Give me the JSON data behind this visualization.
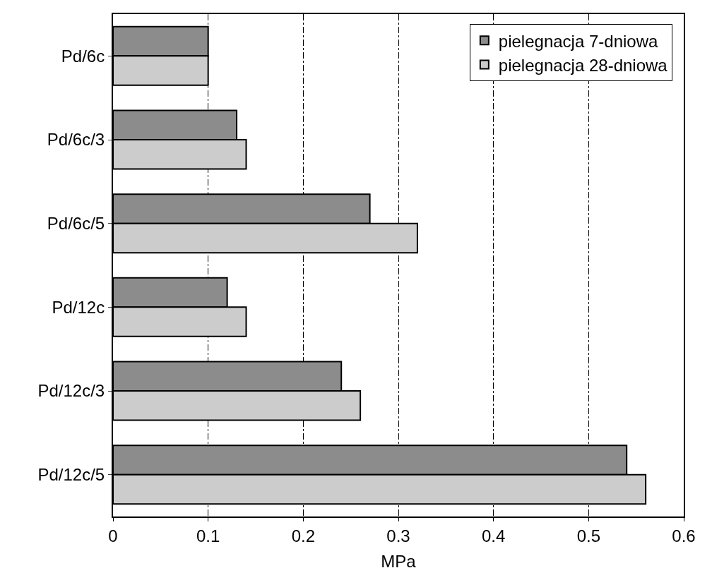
{
  "chart_data": {
    "type": "bar",
    "orientation": "horizontal",
    "xlabel": "MPa",
    "categories": [
      "Pd/6c",
      "Pd/6c/3",
      "Pd/6c/5",
      "Pd/12c",
      "Pd/12c/3",
      "Pd/12c/5"
    ],
    "series": [
      {
        "name": "pielegnacja 7-dniowa",
        "color": "#8c8c8c",
        "values": [
          0.1,
          0.13,
          0.27,
          0.12,
          0.24,
          0.54
        ]
      },
      {
        "name": "pielegnacja 28-dniowa",
        "color": "#cccccc",
        "values": [
          0.1,
          0.14,
          0.32,
          0.14,
          0.26,
          0.56
        ]
      }
    ],
    "xlim": [
      0,
      0.6
    ],
    "xticks": [
      0,
      0.1,
      0.2,
      0.3,
      0.4,
      0.5,
      0.6
    ],
    "grid": "x",
    "legend": "top right"
  }
}
